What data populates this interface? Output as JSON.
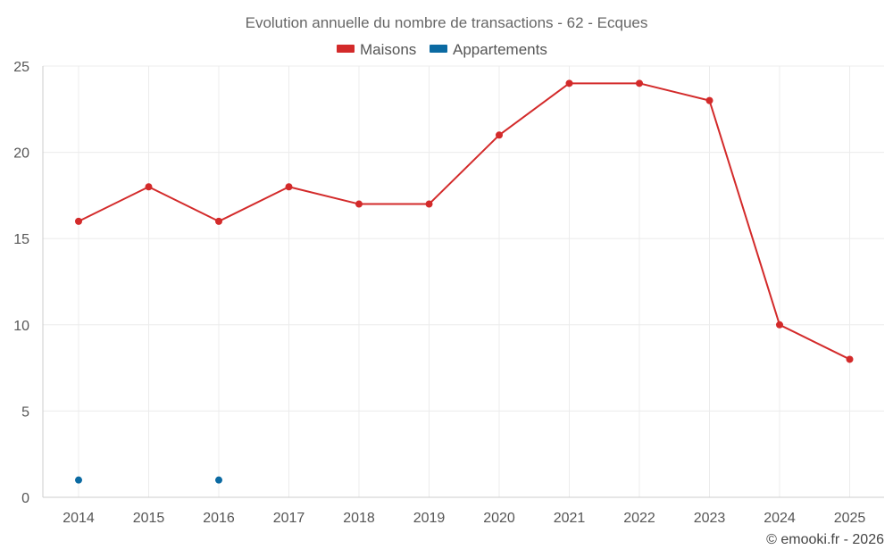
{
  "chart_data": {
    "type": "line",
    "title": "Evolution annuelle du nombre de transactions - 62 - Ecques",
    "categories": [
      "2014",
      "2015",
      "2016",
      "2017",
      "2018",
      "2019",
      "2020",
      "2021",
      "2022",
      "2023",
      "2024",
      "2025"
    ],
    "ylim": [
      0,
      25
    ],
    "yticks": [
      0,
      5,
      10,
      15,
      20,
      25
    ],
    "grid": true,
    "legend_position": "top-center",
    "series": [
      {
        "name": "Maisons",
        "color": "#d32a2a",
        "values": [
          16,
          18,
          16,
          18,
          17,
          17,
          21,
          24,
          24,
          23,
          10,
          8
        ]
      },
      {
        "name": "Appartements",
        "color": "#0b6aa2",
        "values": [
          1,
          null,
          1,
          null,
          null,
          null,
          null,
          null,
          null,
          null,
          null,
          null
        ]
      }
    ],
    "credit": "© emooki.fr - 2026"
  }
}
